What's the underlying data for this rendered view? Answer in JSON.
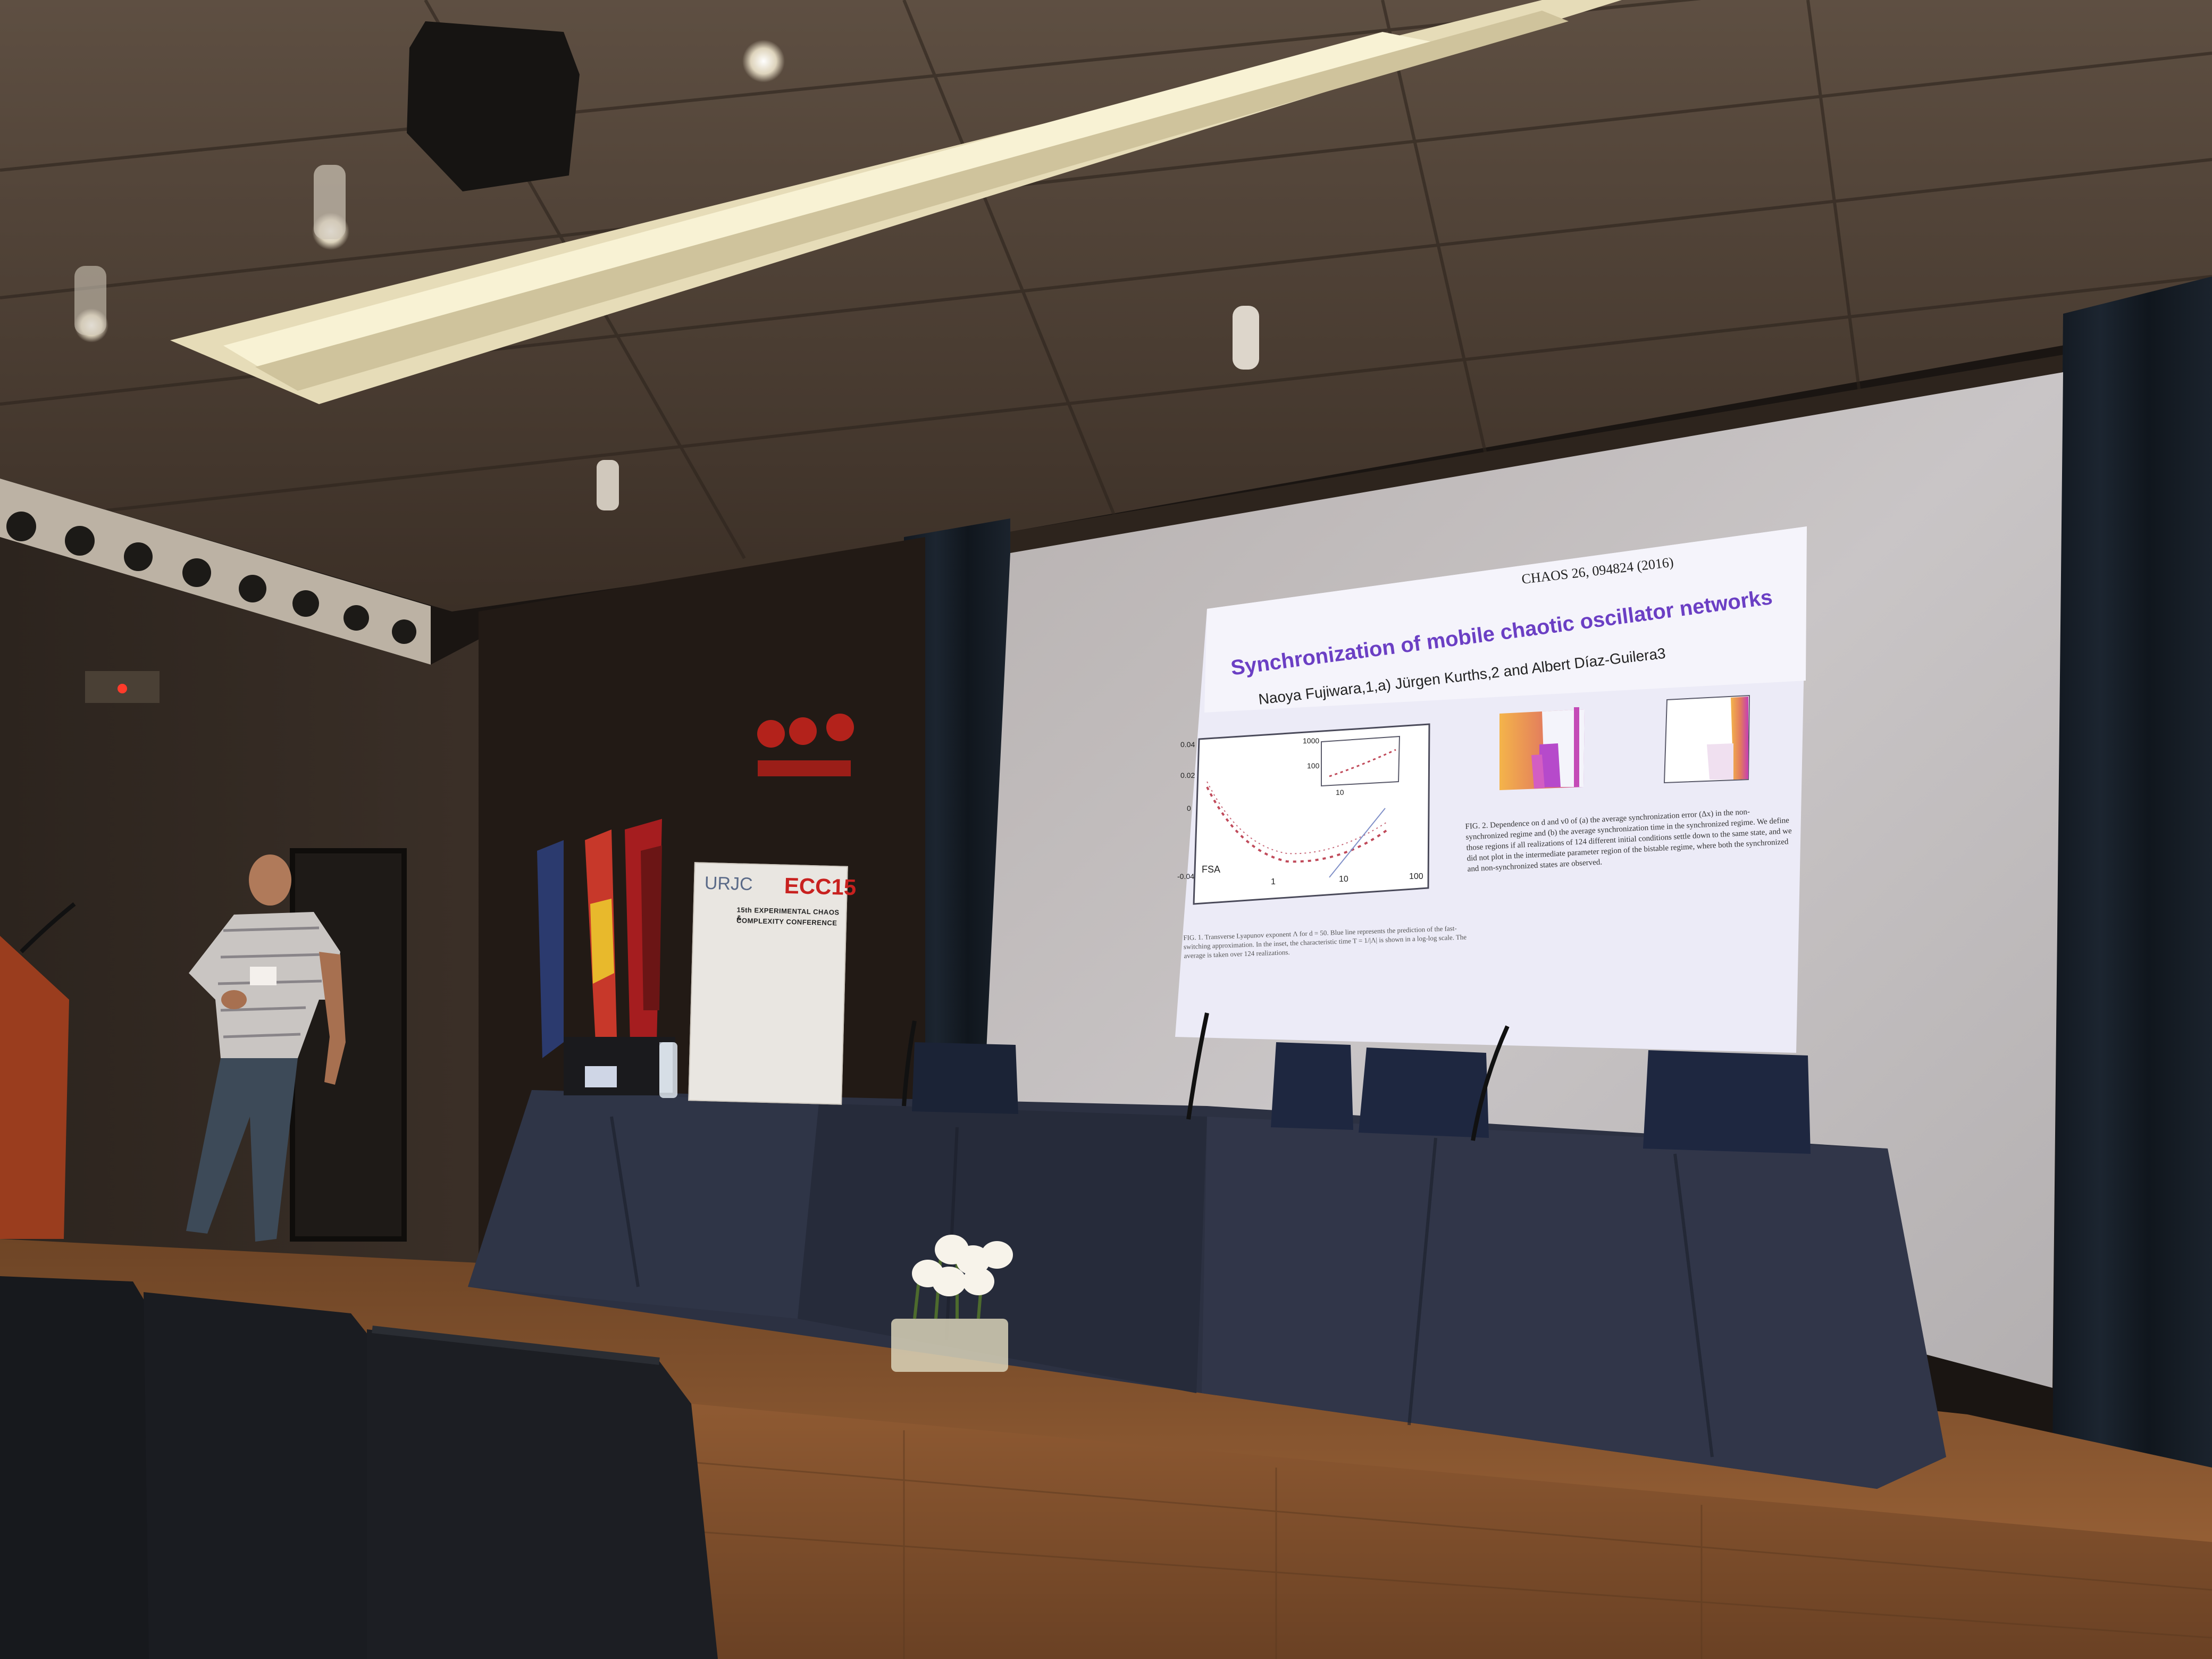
{
  "slide": {
    "citation": "CHAOS 26, 094824 (2016)",
    "title": "Synchronization of mobile chaotic oscillator networks",
    "authors": "Naoya Fujiwara,1,a) Jürgen Kurths,2 and Albert Díaz-Guilera3",
    "fig1_label_fsa": "FSA",
    "fig1_ticks_x": [
      "1",
      "10",
      "100"
    ],
    "fig1_inset_ticks": [
      "1000",
      "100",
      "10"
    ],
    "fig1_ticks_y": [
      "0.04",
      "0.02",
      "0",
      "-0.04"
    ],
    "fig2_caption": "FIG. 2. Dependence on d and v0 of (a) the average synchronization error (Δx) in the non-synchronized regime and (b) the average synchronization time in the synchronized regime. We define those regions if all realizations of 124 different initial conditions settle down to the same state, and we did not plot in the intermediate parameter region of the bistable regime, where both the synchronized and non-synchronized states are observed.",
    "fig1_caption": "FIG. 1. Transverse Lyapunov exponent Λ for d = 50. Blue line represents the prediction of the fast-switching approximation. In the inset, the characteristic time T = 1/|Λ| is shown in a log-log scale. The average is taken over 124 realizations."
  },
  "banner": {
    "logo_left": "URJC",
    "logo_right": "ECC15",
    "line1": "15th EXPERIMENTAL CHAOS &",
    "line2": "COMPLEXITY CONFERENCE"
  },
  "colors": {
    "slide_bg": "#ecebf7",
    "slide_title": "#6b3fc4",
    "heatmap_hot": "#f2a23a",
    "heatmap_mag": "#d43fb0",
    "wall": "#3a2e25",
    "stage": "#8a5530",
    "tablecloth": "#2c3142"
  }
}
